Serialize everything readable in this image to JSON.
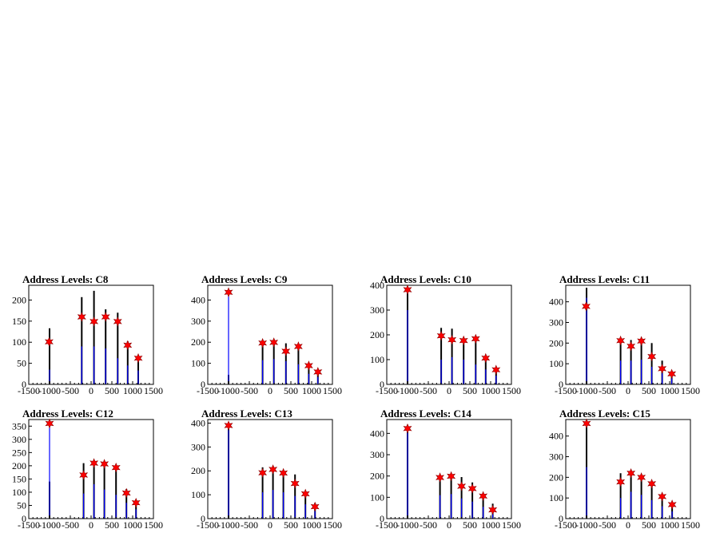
{
  "colors": {
    "background": "#ffffff",
    "frame": "#000000",
    "hist_black": "#000000",
    "hist_blue": "#0000ff",
    "marker": "#ff0000",
    "marker_edge": "#8b0000"
  },
  "chart_data": [
    {
      "type": "bar",
      "title": "Address Levels: C8",
      "xlim": [
        -1500,
        1500
      ],
      "ylim": [
        0,
        235
      ],
      "xticks": [
        -1500,
        -1000,
        -500,
        0,
        500,
        1000,
        1500
      ],
      "xtick_labels": [
        "-1500",
        "-1000",
        "-500",
        "0",
        "500",
        "1000",
        "1500"
      ],
      "yticks": [
        0,
        50,
        100,
        150,
        200
      ],
      "yticks_labels": [
        "0",
        "50",
        "100",
        "150",
        "200"
      ],
      "black_bars": [
        {
          "x": -1000,
          "y": 133
        },
        {
          "x": -225,
          "y": 207
        },
        {
          "x": 70,
          "y": 222
        },
        {
          "x": 350,
          "y": 178
        },
        {
          "x": 640,
          "y": 170
        },
        {
          "x": 880,
          "y": 102
        },
        {
          "x": 1135,
          "y": 67
        }
      ],
      "blue_bars": [
        {
          "x": -1000,
          "y": 35
        },
        {
          "x": -225,
          "y": 90
        },
        {
          "x": 70,
          "y": 90
        },
        {
          "x": 350,
          "y": 85
        },
        {
          "x": 640,
          "y": 62
        },
        {
          "x": 880,
          "y": 45
        },
        {
          "x": 1135,
          "y": 33
        }
      ],
      "peaks": [
        {
          "x": -1010,
          "y": 101
        },
        {
          "x": -225,
          "y": 160
        },
        {
          "x": 70,
          "y": 149
        },
        {
          "x": 350,
          "y": 160
        },
        {
          "x": 640,
          "y": 149
        },
        {
          "x": 880,
          "y": 93
        },
        {
          "x": 1135,
          "y": 62
        }
      ]
    },
    {
      "type": "bar",
      "title": "Address Levels: C9",
      "xlim": [
        -1500,
        1500
      ],
      "ylim": [
        0,
        470
      ],
      "xticks": [
        -1500,
        -1000,
        -500,
        0,
        500,
        1000,
        1500
      ],
      "xtick_labels": [
        "-1500",
        "-1000",
        "-500",
        "0",
        "500",
        "1000",
        "1500"
      ],
      "yticks": [
        0,
        100,
        200,
        300,
        400
      ],
      "yticks_labels": [
        "0",
        "100",
        "200",
        "300",
        "400"
      ],
      "black_bars": [
        {
          "x": -1000,
          "y": 45
        },
        {
          "x": -180,
          "y": 205
        },
        {
          "x": 90,
          "y": 210
        },
        {
          "x": 380,
          "y": 195
        },
        {
          "x": 680,
          "y": 185
        },
        {
          "x": 930,
          "y": 100
        },
        {
          "x": 1150,
          "y": 65
        }
      ],
      "blue_bars": [
        {
          "x": -1000,
          "y": 437
        },
        {
          "x": -180,
          "y": 115
        },
        {
          "x": 90,
          "y": 120
        },
        {
          "x": 380,
          "y": 110
        },
        {
          "x": 680,
          "y": 95
        },
        {
          "x": 930,
          "y": 50
        },
        {
          "x": 1150,
          "y": 35
        }
      ],
      "peaks": [
        {
          "x": -1000,
          "y": 437
        },
        {
          "x": -180,
          "y": 196
        },
        {
          "x": 90,
          "y": 199
        },
        {
          "x": 380,
          "y": 157
        },
        {
          "x": 680,
          "y": 180
        },
        {
          "x": 930,
          "y": 89
        },
        {
          "x": 1150,
          "y": 59
        }
      ]
    },
    {
      "type": "bar",
      "title": "Address Levels: C10",
      "xlim": [
        -1500,
        1500
      ],
      "ylim": [
        0,
        400
      ],
      "xticks": [
        -1500,
        -1000,
        -500,
        0,
        500,
        1000,
        1500
      ],
      "xtick_labels": [
        "-1500",
        "-1000",
        "-500",
        "0",
        "500",
        "1000",
        "1500"
      ],
      "yticks": [
        0,
        100,
        200,
        300,
        400
      ],
      "yticks_labels": [
        "0",
        "100",
        "200",
        "300",
        "400"
      ],
      "black_bars": [
        {
          "x": -1000,
          "y": 385
        },
        {
          "x": -190,
          "y": 228
        },
        {
          "x": 70,
          "y": 225
        },
        {
          "x": 350,
          "y": 185
        },
        {
          "x": 640,
          "y": 185
        },
        {
          "x": 880,
          "y": 112
        },
        {
          "x": 1130,
          "y": 67
        }
      ],
      "blue_bars": [
        {
          "x": -1000,
          "y": 300
        },
        {
          "x": -190,
          "y": 100
        },
        {
          "x": 70,
          "y": 110
        },
        {
          "x": 350,
          "y": 100
        },
        {
          "x": 640,
          "y": 80
        },
        {
          "x": 880,
          "y": 60
        },
        {
          "x": 1130,
          "y": 35
        }
      ],
      "peaks": [
        {
          "x": -1000,
          "y": 382
        },
        {
          "x": -190,
          "y": 196
        },
        {
          "x": 70,
          "y": 180
        },
        {
          "x": 350,
          "y": 177
        },
        {
          "x": 640,
          "y": 184
        },
        {
          "x": 880,
          "y": 106
        },
        {
          "x": 1130,
          "y": 59
        }
      ]
    },
    {
      "type": "bar",
      "title": "Address Levels: C11",
      "xlim": [
        -1500,
        1500
      ],
      "ylim": [
        0,
        480
      ],
      "xticks": [
        -1500,
        -1000,
        -500,
        0,
        500,
        1000,
        1500
      ],
      "xtick_labels": [
        "-1500",
        "-1000",
        "-500",
        "0",
        "500",
        "1000",
        "1500"
      ],
      "yticks": [
        0,
        100,
        200,
        300,
        400
      ],
      "yticks_labels": [
        "0",
        "100",
        "200",
        "300",
        "400"
      ],
      "black_bars": [
        {
          "x": -1000,
          "y": 468
        },
        {
          "x": -180,
          "y": 225
        },
        {
          "x": 70,
          "y": 215
        },
        {
          "x": 320,
          "y": 225
        },
        {
          "x": 570,
          "y": 200
        },
        {
          "x": 820,
          "y": 115
        },
        {
          "x": 1050,
          "y": 65
        }
      ],
      "blue_bars": [
        {
          "x": -1000,
          "y": 420
        },
        {
          "x": -180,
          "y": 115
        },
        {
          "x": 70,
          "y": 115
        },
        {
          "x": 320,
          "y": 120
        },
        {
          "x": 570,
          "y": 85
        },
        {
          "x": 820,
          "y": 55
        },
        {
          "x": 1050,
          "y": 30
        }
      ],
      "peaks": [
        {
          "x": -1010,
          "y": 378
        },
        {
          "x": -180,
          "y": 212
        },
        {
          "x": 70,
          "y": 185
        },
        {
          "x": 320,
          "y": 210
        },
        {
          "x": 570,
          "y": 135
        },
        {
          "x": 820,
          "y": 76
        },
        {
          "x": 1050,
          "y": 51
        }
      ]
    },
    {
      "type": "bar",
      "title": "Address Levels: C12",
      "xlim": [
        -1500,
        1500
      ],
      "ylim": [
        0,
        375
      ],
      "xticks": [
        -1500,
        -1000,
        -500,
        0,
        500,
        1000,
        1500
      ],
      "xtick_labels": [
        "-1500",
        "-1000",
        "-500",
        "0",
        "500",
        "1000",
        "1500"
      ],
      "yticks": [
        0,
        50,
        100,
        150,
        200,
        250,
        300,
        350
      ],
      "yticks_labels": [
        "0",
        "50",
        "100",
        "150",
        "200",
        "250",
        "300",
        "350"
      ],
      "black_bars": [
        {
          "x": -1000,
          "y": 140
        },
        {
          "x": -180,
          "y": 210
        },
        {
          "x": 70,
          "y": 218
        },
        {
          "x": 320,
          "y": 210
        },
        {
          "x": 600,
          "y": 200
        },
        {
          "x": 850,
          "y": 112
        },
        {
          "x": 1080,
          "y": 68
        }
      ],
      "blue_bars": [
        {
          "x": -1000,
          "y": 362
        },
        {
          "x": -180,
          "y": 95
        },
        {
          "x": 70,
          "y": 130
        },
        {
          "x": 320,
          "y": 110
        },
        {
          "x": 600,
          "y": 90
        },
        {
          "x": 850,
          "y": 60
        },
        {
          "x": 1080,
          "y": 35
        }
      ],
      "peaks": [
        {
          "x": -1000,
          "y": 360
        },
        {
          "x": -180,
          "y": 165
        },
        {
          "x": 70,
          "y": 210
        },
        {
          "x": 320,
          "y": 207
        },
        {
          "x": 600,
          "y": 193
        },
        {
          "x": 850,
          "y": 97
        },
        {
          "x": 1080,
          "y": 60
        }
      ]
    },
    {
      "type": "bar",
      "title": "Address Levels: C13",
      "xlim": [
        -1500,
        1500
      ],
      "ylim": [
        0,
        415
      ],
      "xticks": [
        -1500,
        -1000,
        -500,
        0,
        500,
        1000,
        1500
      ],
      "xtick_labels": [
        "-1500",
        "-1000",
        "-500",
        "0",
        "500",
        "1000",
        "1500"
      ],
      "yticks": [
        0,
        100,
        200,
        300,
        400
      ],
      "yticks_labels": [
        "0",
        "100",
        "200",
        "300",
        "400"
      ],
      "black_bars": [
        {
          "x": -1000,
          "y": 400
        },
        {
          "x": -180,
          "y": 215
        },
        {
          "x": 70,
          "y": 220
        },
        {
          "x": 320,
          "y": 200
        },
        {
          "x": 600,
          "y": 185
        },
        {
          "x": 850,
          "y": 115
        },
        {
          "x": 1080,
          "y": 65
        }
      ],
      "blue_bars": [
        {
          "x": -1000,
          "y": 380
        },
        {
          "x": -180,
          "y": 110
        },
        {
          "x": 70,
          "y": 120
        },
        {
          "x": 320,
          "y": 110
        },
        {
          "x": 600,
          "y": 95
        },
        {
          "x": 850,
          "y": 60
        },
        {
          "x": 1080,
          "y": 35
        }
      ],
      "peaks": [
        {
          "x": -1000,
          "y": 390
        },
        {
          "x": -180,
          "y": 192
        },
        {
          "x": 70,
          "y": 206
        },
        {
          "x": 320,
          "y": 191
        },
        {
          "x": 600,
          "y": 147
        },
        {
          "x": 850,
          "y": 104
        },
        {
          "x": 1080,
          "y": 50
        }
      ]
    },
    {
      "type": "bar",
      "title": "Address Levels: C14",
      "xlim": [
        -1500,
        1500
      ],
      "ylim": [
        0,
        465
      ],
      "xticks": [
        -1500,
        -1000,
        -500,
        0,
        500,
        1000,
        1500
      ],
      "xtick_labels": [
        "-1500",
        "-1000",
        "-500",
        "0",
        "500",
        "1000",
        "1500"
      ],
      "yticks": [
        0,
        100,
        200,
        300,
        400
      ],
      "yticks_labels": [
        "0",
        "100",
        "200",
        "300",
        "400"
      ],
      "black_bars": [
        {
          "x": -1000,
          "y": 440
        },
        {
          "x": -220,
          "y": 205
        },
        {
          "x": 50,
          "y": 205
        },
        {
          "x": 300,
          "y": 195
        },
        {
          "x": 560,
          "y": 170
        },
        {
          "x": 820,
          "y": 108
        },
        {
          "x": 1050,
          "y": 70
        }
      ],
      "blue_bars": [
        {
          "x": -1000,
          "y": 410
        },
        {
          "x": -220,
          "y": 110
        },
        {
          "x": 50,
          "y": 115
        },
        {
          "x": 300,
          "y": 95
        },
        {
          "x": 560,
          "y": 80
        },
        {
          "x": 820,
          "y": 55
        },
        {
          "x": 1050,
          "y": 30
        }
      ],
      "peaks": [
        {
          "x": -1000,
          "y": 423
        },
        {
          "x": -220,
          "y": 193
        },
        {
          "x": 50,
          "y": 199
        },
        {
          "x": 300,
          "y": 152
        },
        {
          "x": 560,
          "y": 141
        },
        {
          "x": 820,
          "y": 106
        },
        {
          "x": 1050,
          "y": 41
        }
      ]
    },
    {
      "type": "bar",
      "title": "Address Levels: C15",
      "xlim": [
        -1500,
        1500
      ],
      "ylim": [
        0,
        480
      ],
      "xticks": [
        -1500,
        -1000,
        -500,
        0,
        500,
        1000,
        1500
      ],
      "xtick_labels": [
        "-1500",
        "-1000",
        "-500",
        "0",
        "500",
        "1000",
        "1500"
      ],
      "yticks": [
        0,
        100,
        200,
        300,
        400
      ],
      "yticks_labels": [
        "0",
        "100",
        "200",
        "300",
        "400"
      ],
      "black_bars": [
        {
          "x": -1000,
          "y": 470
        },
        {
          "x": -180,
          "y": 220
        },
        {
          "x": 70,
          "y": 228
        },
        {
          "x": 320,
          "y": 215
        },
        {
          "x": 570,
          "y": 180
        },
        {
          "x": 820,
          "y": 118
        },
        {
          "x": 1060,
          "y": 75
        }
      ],
      "blue_bars": [
        {
          "x": -1000,
          "y": 250
        },
        {
          "x": -180,
          "y": 100
        },
        {
          "x": 70,
          "y": 130
        },
        {
          "x": 320,
          "y": 115
        },
        {
          "x": 570,
          "y": 90
        },
        {
          "x": 820,
          "y": 60
        },
        {
          "x": 1060,
          "y": 35
        }
      ],
      "peaks": [
        {
          "x": -1000,
          "y": 461
        },
        {
          "x": -180,
          "y": 178
        },
        {
          "x": 70,
          "y": 220
        },
        {
          "x": 320,
          "y": 200
        },
        {
          "x": 570,
          "y": 169
        },
        {
          "x": 820,
          "y": 107
        },
        {
          "x": 1060,
          "y": 68
        }
      ]
    }
  ]
}
